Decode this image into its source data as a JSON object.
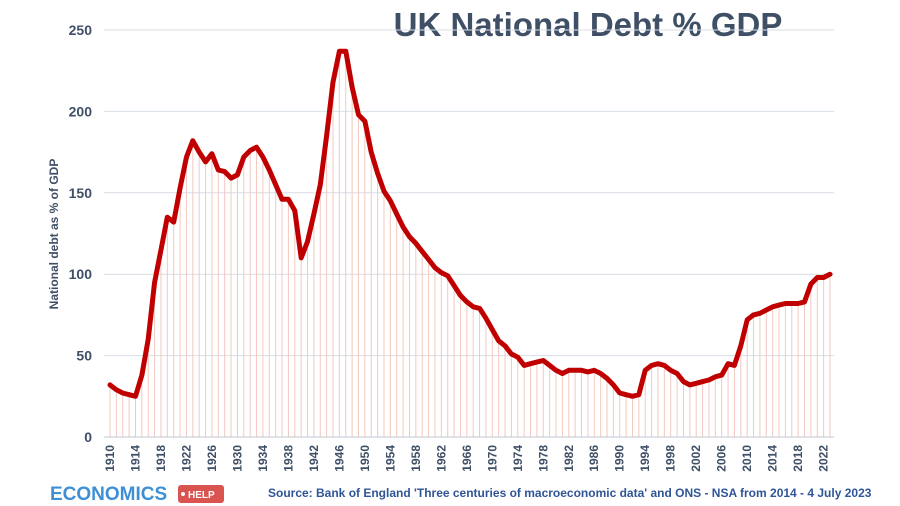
{
  "logo": {
    "main": "ECONOMICS",
    "tag": "HELP",
    "colors": {
      "main": "#3d8fd6",
      "tag": "#d9534f"
    }
  },
  "source_note": "Source: Bank of England 'Three centuries of macroeconomic data' and ONS - NSA from 2014  - 4 July 2023",
  "colors": {
    "line": "#c00000",
    "drop_lines": "#f2c9bf",
    "gridline": "#d9dee6",
    "text": "#3f4f66"
  },
  "chart_data": {
    "type": "line",
    "title": "UK National Debt % GDP",
    "xlabel": "",
    "ylabel": "National debt as % of GDP",
    "ylim": [
      0,
      250
    ],
    "yticks": [
      0,
      50,
      100,
      150,
      200,
      250
    ],
    "xlim": [
      1910,
      2023
    ],
    "xticks": [
      1910,
      1914,
      1918,
      1922,
      1926,
      1930,
      1934,
      1938,
      1942,
      1946,
      1950,
      1954,
      1958,
      1962,
      1966,
      1970,
      1974,
      1978,
      1982,
      1986,
      1990,
      1994,
      1998,
      2002,
      2006,
      2010,
      2014,
      2018,
      2022
    ],
    "grid": "horizontal",
    "legend": "none",
    "series": [
      {
        "x": [
          1910,
          1911,
          1912,
          1913,
          1914,
          1915,
          1916,
          1917,
          1918,
          1919,
          1920,
          1921,
          1922,
          1923,
          1924,
          1925,
          1926,
          1927,
          1928,
          1929,
          1930,
          1931,
          1932,
          1933,
          1934,
          1935,
          1936,
          1937,
          1938,
          1939,
          1940,
          1941,
          1942,
          1943,
          1944,
          1945,
          1946,
          1947,
          1948,
          1949,
          1950,
          1951,
          1952,
          1953,
          1954,
          1955,
          1956,
          1957,
          1958,
          1959,
          1960,
          1961,
          1962,
          1963,
          1964,
          1965,
          1966,
          1967,
          1968,
          1969,
          1970,
          1971,
          1972,
          1973,
          1974,
          1975,
          1976,
          1977,
          1978,
          1979,
          1980,
          1981,
          1982,
          1983,
          1984,
          1985,
          1986,
          1987,
          1988,
          1989,
          1990,
          1991,
          1992,
          1993,
          1994,
          1995,
          1996,
          1997,
          1998,
          1999,
          2000,
          2001,
          2002,
          2003,
          2004,
          2005,
          2006,
          2007,
          2008,
          2009,
          2010,
          2011,
          2012,
          2013,
          2014,
          2015,
          2016,
          2017,
          2018,
          2019,
          2020,
          2021,
          2022,
          2023
        ],
        "values": [
          32,
          29,
          27,
          26,
          25,
          38,
          60,
          95,
          115,
          135,
          132,
          153,
          172,
          182,
          175,
          169,
          174,
          164,
          163,
          159,
          161,
          172,
          176,
          178,
          172,
          164,
          155,
          146,
          146,
          139,
          110,
          120,
          137,
          155,
          185,
          218,
          237,
          237,
          215,
          198,
          194,
          175,
          162,
          151,
          145,
          137,
          129,
          123,
          119,
          114,
          109,
          104,
          101,
          99,
          93,
          87,
          83,
          80,
          79,
          73,
          66,
          59,
          56,
          51,
          49,
          44,
          45,
          46,
          47,
          44,
          41,
          39,
          41,
          41,
          41,
          40,
          41,
          39,
          36,
          32,
          27,
          26,
          25,
          26,
          41,
          44,
          45,
          44,
          41,
          39,
          34,
          32,
          33,
          34,
          35,
          37,
          38,
          45,
          44,
          56,
          72,
          75,
          76,
          78,
          80,
          81,
          82,
          82,
          82,
          83,
          94,
          98,
          98,
          100
        ]
      }
    ]
  }
}
